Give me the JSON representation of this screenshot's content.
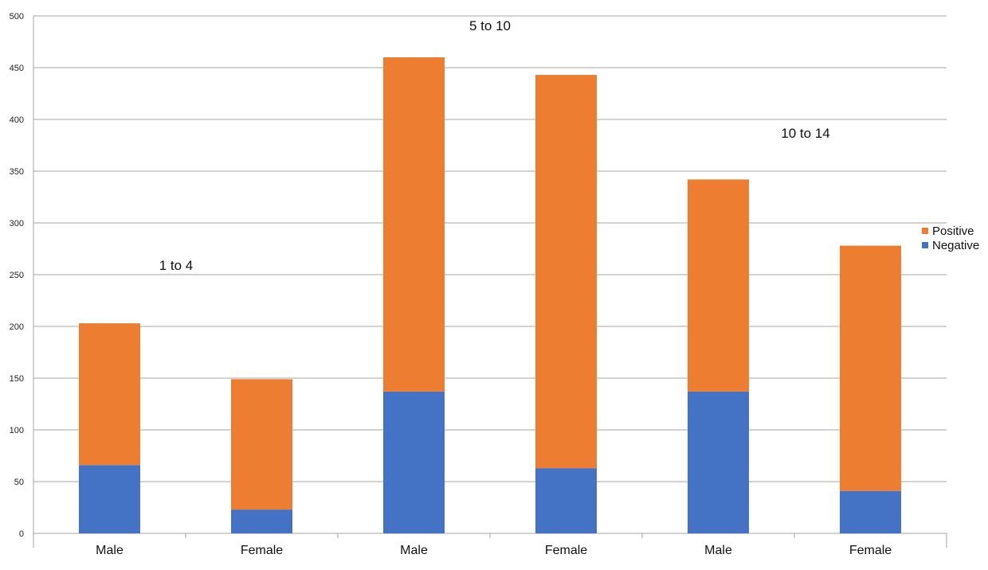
{
  "chart_data": {
    "type": "bar",
    "stacked": true,
    "categories": [
      "Male",
      "Female",
      "Male",
      "Female",
      "Male",
      "Female"
    ],
    "group_labels": [
      "1 to 4",
      "5 to 10",
      "10 to 14"
    ],
    "series": [
      {
        "name": "Negative",
        "values": [
          66,
          23,
          137,
          63,
          137,
          41
        ],
        "color": "#4472C4"
      },
      {
        "name": "Positive",
        "values": [
          137,
          126,
          323,
          380,
          205,
          237
        ],
        "color": "#ED7D31"
      }
    ],
    "legend_order": [
      "Positive",
      "Negative"
    ],
    "yticks": [
      "0",
      "50",
      "100",
      "150",
      "200",
      "250",
      "300",
      "350",
      "400",
      "450",
      "500"
    ],
    "ylim": [
      0,
      500
    ],
    "grid": true,
    "legend_position": "right"
  }
}
